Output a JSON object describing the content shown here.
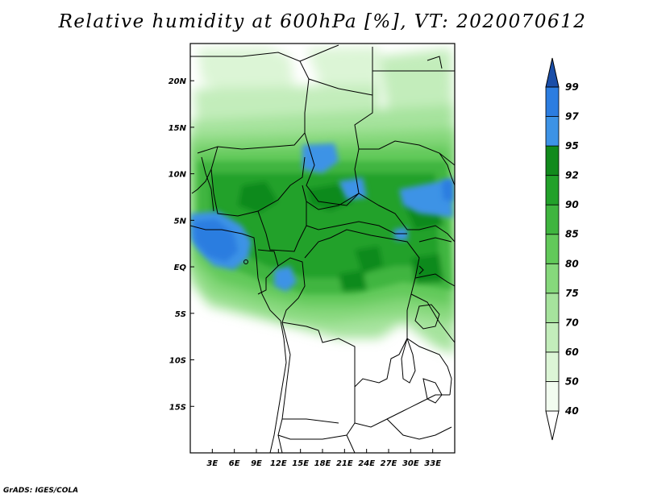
{
  "title": "Relative humidity at 600hPa [%], VT: 2020070612",
  "credit": "GrADS: IGES/COLA",
  "map": {
    "lon_range": [
      0,
      36
    ],
    "lat_range": [
      -20,
      24
    ],
    "lon_ticks": [
      {
        "lon": 3,
        "label": "3E"
      },
      {
        "lon": 6,
        "label": "6E"
      },
      {
        "lon": 9,
        "label": "9E"
      },
      {
        "lon": 12,
        "label": "12E"
      },
      {
        "lon": 15,
        "label": "15E"
      },
      {
        "lon": 18,
        "label": "18E"
      },
      {
        "lon": 21,
        "label": "21E"
      },
      {
        "lon": 24,
        "label": "24E"
      },
      {
        "lon": 27,
        "label": "27E"
      },
      {
        "lon": 30,
        "label": "30E"
      },
      {
        "lon": 33,
        "label": "33E"
      }
    ],
    "lat_ticks": [
      {
        "lat": 20,
        "label": "20N"
      },
      {
        "lat": 15,
        "label": "15N"
      },
      {
        "lat": 10,
        "label": "10N"
      },
      {
        "lat": 5,
        "label": "5N"
      },
      {
        "lat": 0,
        "label": "EQ"
      },
      {
        "lat": -5,
        "label": "5S"
      },
      {
        "lat": -10,
        "label": "10S"
      },
      {
        "lat": -15,
        "label": "15S"
      }
    ]
  },
  "colorbar": {
    "levels": [
      {
        "label": "40",
        "color": "#f2fcf0"
      },
      {
        "label": "50",
        "color": "#dcf5d6"
      },
      {
        "label": "60",
        "color": "#c3edbb"
      },
      {
        "label": "70",
        "color": "#a6e39d"
      },
      {
        "label": "75",
        "color": "#86d87c"
      },
      {
        "label": "80",
        "color": "#62c95a"
      },
      {
        "label": "85",
        "color": "#3fb53f"
      },
      {
        "label": "90",
        "color": "#22a12a"
      },
      {
        "label": "92",
        "color": "#118a1c"
      },
      {
        "label": "95",
        "color": "#3d93e6"
      },
      {
        "label": "97",
        "color": "#2c7de0"
      },
      {
        "label": "99",
        "color": "#1a5fc4"
      }
    ],
    "bottom_color": "#ffffff",
    "top_color": "#1a4ea8"
  }
}
